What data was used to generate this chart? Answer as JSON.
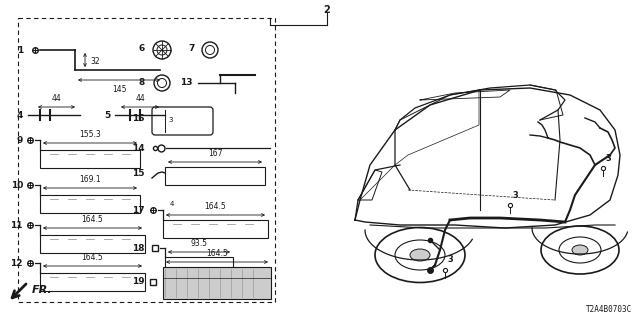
{
  "diagram_id": "T2A4B0703C",
  "bg_color": "#ffffff",
  "line_color": "#1a1a1a",
  "gray_color": "#888888",
  "light_gray": "#cccccc"
}
